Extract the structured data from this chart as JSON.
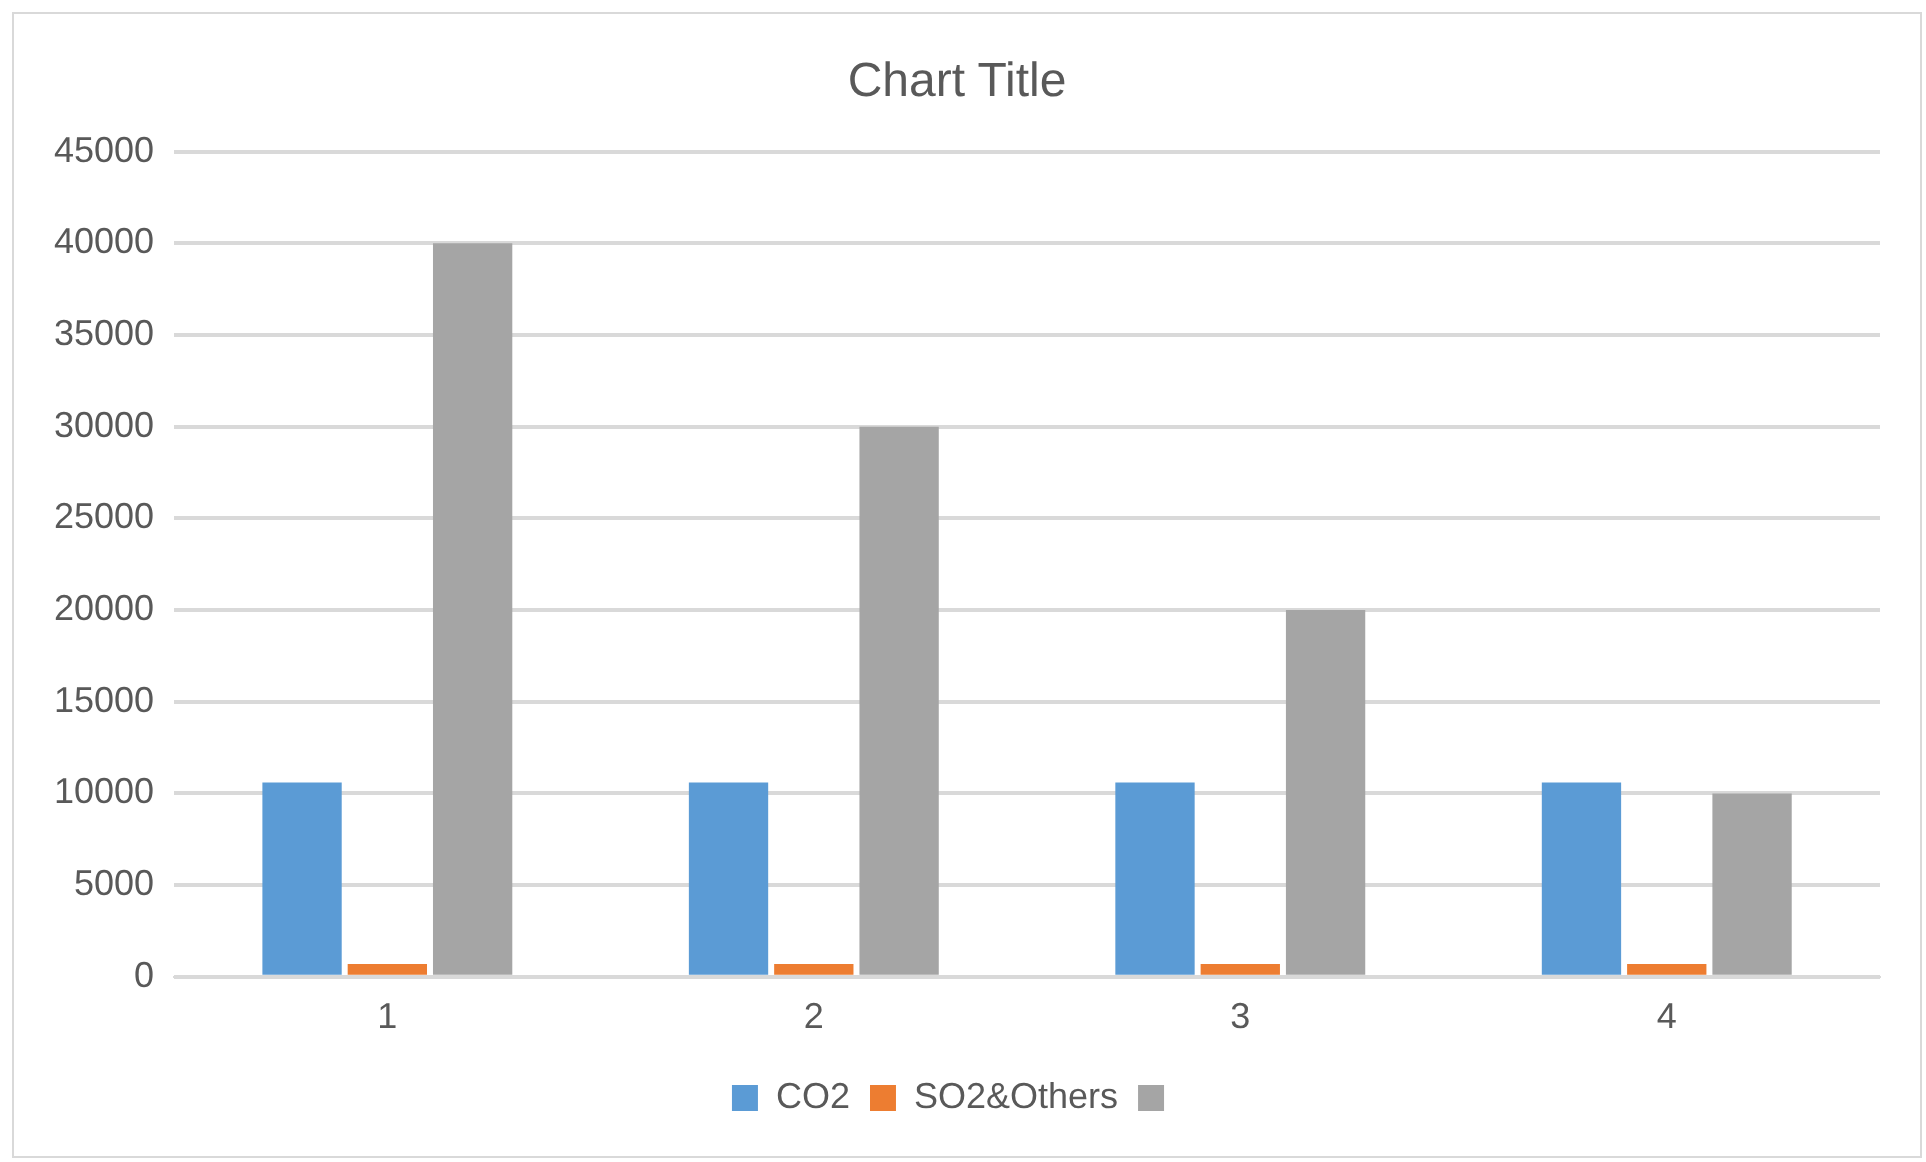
{
  "chart_data": {
    "type": "bar",
    "title": "Chart Title",
    "categories": [
      "1",
      "2",
      "3",
      "4"
    ],
    "series": [
      {
        "name": "CO2",
        "color": "#5b9bd5",
        "values": [
          10600,
          10600,
          10600,
          10600
        ]
      },
      {
        "name": "SO2&Others",
        "color": "#ed7d31",
        "values": [
          700,
          700,
          700,
          700
        ]
      },
      {
        "color": "#a5a5a5",
        "values": [
          40000,
          30000,
          20000,
          10000
        ]
      }
    ],
    "ylim": [
      0,
      45000
    ],
    "yticks": [
      0,
      5000,
      10000,
      15000,
      20000,
      25000,
      30000,
      35000,
      40000,
      45000
    ],
    "grid": "y",
    "legend": "bottom"
  }
}
